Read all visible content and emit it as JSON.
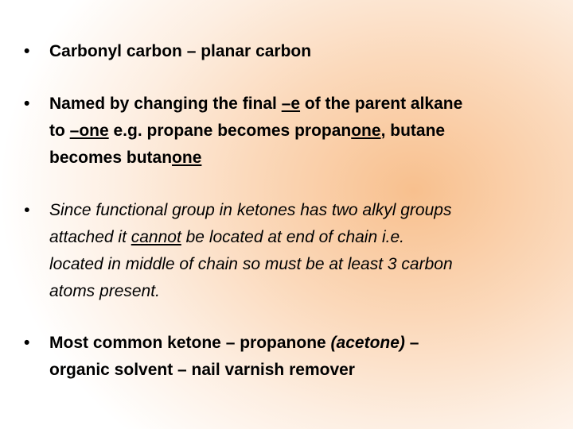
{
  "slide": {
    "bullets": [
      {
        "lines": [
          [
            "Carbonyl carbon – planar carbon"
          ]
        ]
      },
      {
        "lines": [
          [
            "Named by changing the final ",
            "–e",
            " of the parent alkane"
          ],
          [
            "to ",
            "–one",
            " e.g. propane becomes propan",
            "one",
            ", butane"
          ],
          [
            "becomes butan",
            "one"
          ]
        ]
      },
      {
        "lines": [
          [
            "Since functional group in ketones has two alkyl groups"
          ],
          [
            "attached it ",
            "cannot",
            " be located at end of chain i.e."
          ],
          [
            "located in middle of chain so must be at least 3 carbon"
          ],
          [
            "atoms present."
          ]
        ]
      },
      {
        "lines": [
          [
            "Most common ketone – propanone ",
            "(acetone)",
            " –"
          ],
          [
            "organic solvent – nail varnish remover"
          ]
        ]
      }
    ]
  }
}
